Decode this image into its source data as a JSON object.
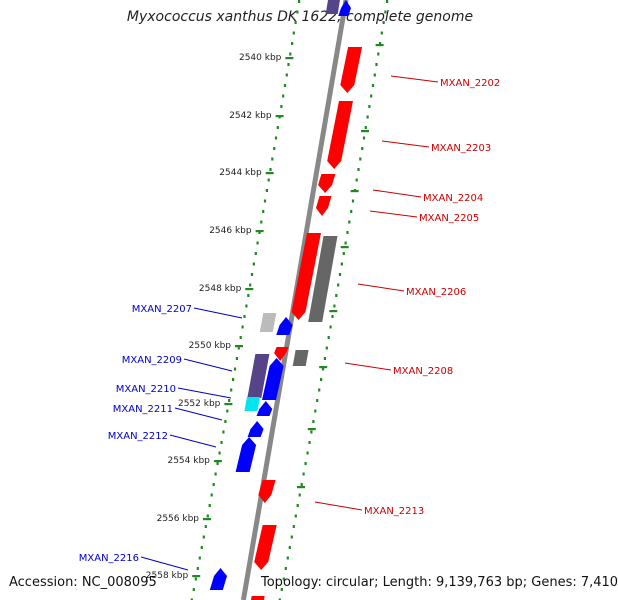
{
  "title": "Myxococcus xanthus DK 1622, complete genome",
  "footer": {
    "accession": "Accession: NC_008095",
    "topology": "Topology: circular; Length: 9,139,763 bp; Genes: 7,410"
  },
  "colors": {
    "forward_gene": "#ff0000",
    "reverse_gene": "#0000ff",
    "pseudo_gray": "#666666",
    "light_gray": "#bbbbbb",
    "purple": "#554488",
    "cyan": "#00e5ee",
    "tick_green": "#228822",
    "backbone": "#888888",
    "reverse_label": "#0000cc",
    "forward_label": "#cc0000"
  },
  "ticks": [
    "2540 kbp",
    "2542 kbp",
    "2544 kbp",
    "2546 kbp",
    "2548 kbp",
    "2550 kbp",
    "2552 kbp",
    "2554 kbp",
    "2556 kbp",
    "2558 kbp"
  ],
  "forward_labels": [
    "MXAN_2202",
    "MXAN_2203",
    "MXAN_2204",
    "MXAN_2205",
    "MXAN_2206",
    "MXAN_2208",
    "MXAN_2213"
  ],
  "reverse_labels": [
    "MXAN_2207",
    "MXAN_2209",
    "MXAN_2210",
    "MXAN_2211",
    "MXAN_2212",
    "MXAN_2216"
  ]
}
